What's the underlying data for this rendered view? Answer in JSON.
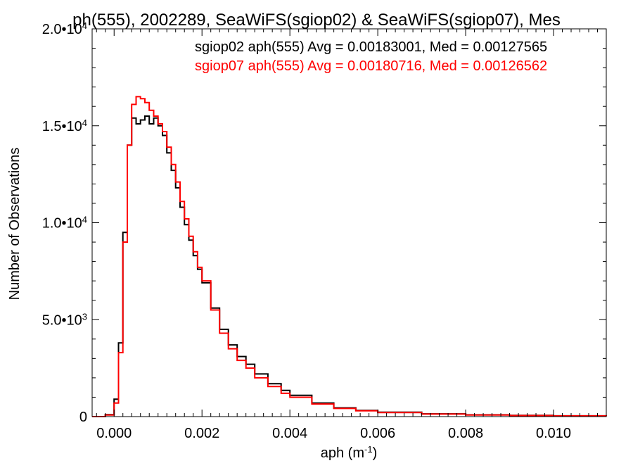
{
  "chart_data": {
    "type": "line",
    "title": "ph(555), 2002289, SeaWiFS(sgiop02) & SeaWiFS(sgiop07), Mes",
    "xlabel": {
      "main": "aph (m",
      "sup": "-1",
      "end": ")"
    },
    "ylabel": "Number of Observations",
    "xlim": [
      -0.0005,
      0.0112
    ],
    "ylim": [
      0,
      20000
    ],
    "grid": false,
    "x_ticks": [
      {
        "value": 0.0,
        "label": "0.000"
      },
      {
        "value": 0.002,
        "label": "0.002"
      },
      {
        "value": 0.004,
        "label": "0.004"
      },
      {
        "value": 0.006,
        "label": "0.006"
      },
      {
        "value": 0.008,
        "label": "0.008"
      },
      {
        "value": 0.01,
        "label": "0.010"
      }
    ],
    "y_ticks": [
      {
        "value": 0,
        "base": "0",
        "sup": ""
      },
      {
        "value": 5000,
        "base": "5.0•10",
        "sup": "3"
      },
      {
        "value": 10000,
        "base": "1.0•10",
        "sup": "4"
      },
      {
        "value": 15000,
        "base": "1.5•10",
        "sup": "4"
      },
      {
        "value": 20000,
        "base": "2.0•10",
        "sup": "4"
      }
    ],
    "annotations": [
      {
        "text": "sgiop02 aph(555) Avg = 0.00183001, Med = 0.00127565",
        "color": "#000000"
      },
      {
        "text": "sgiop07 aph(555) Avg = 0.00180716, Med = 0.00126562",
        "color": "#ff0000"
      }
    ],
    "series": [
      {
        "name": "sgiop02",
        "color": "#000000",
        "x": [
          -0.0005,
          -0.0002,
          0.0,
          0.0001,
          0.0002,
          0.0003,
          0.0004,
          0.0005,
          0.0006,
          0.0007,
          0.0008,
          0.0009,
          0.001,
          0.0011,
          0.0012,
          0.0013,
          0.0014,
          0.0015,
          0.0016,
          0.0017,
          0.0018,
          0.0019,
          0.002,
          0.0022,
          0.0024,
          0.0026,
          0.0028,
          0.003,
          0.0032,
          0.0035,
          0.0038,
          0.004,
          0.0045,
          0.005,
          0.0055,
          0.006,
          0.007,
          0.008,
          0.009,
          0.01,
          0.0112
        ],
        "y": [
          0,
          100,
          900,
          3800,
          9500,
          14000,
          15400,
          15100,
          15300,
          15500,
          15100,
          15400,
          15000,
          14500,
          13600,
          12700,
          11800,
          10800,
          9900,
          9100,
          8300,
          7600,
          6900,
          5600,
          4500,
          3700,
          3100,
          2700,
          2200,
          1700,
          1350,
          1100,
          700,
          450,
          320,
          230,
          140,
          90,
          60,
          40,
          20
        ]
      },
      {
        "name": "sgiop07",
        "color": "#ff0000",
        "x": [
          -0.0005,
          -0.0002,
          0.0,
          0.0001,
          0.0002,
          0.0003,
          0.0004,
          0.0005,
          0.0006,
          0.0007,
          0.0008,
          0.0009,
          0.001,
          0.0011,
          0.0012,
          0.0013,
          0.0014,
          0.0015,
          0.0016,
          0.0017,
          0.0018,
          0.0019,
          0.002,
          0.0022,
          0.0024,
          0.0026,
          0.0028,
          0.003,
          0.0032,
          0.0035,
          0.0038,
          0.004,
          0.0045,
          0.005,
          0.0055,
          0.006,
          0.007,
          0.008,
          0.009,
          0.01,
          0.0112
        ],
        "y": [
          0,
          80,
          700,
          3300,
          9000,
          14000,
          16100,
          16500,
          16400,
          16200,
          15800,
          15500,
          15100,
          14700,
          13900,
          13000,
          12100,
          11100,
          10200,
          9300,
          8500,
          7700,
          7000,
          5500,
          4300,
          3500,
          2900,
          2500,
          2000,
          1550,
          1200,
          1000,
          650,
          420,
          300,
          210,
          130,
          85,
          55,
          35,
          20
        ]
      }
    ]
  }
}
